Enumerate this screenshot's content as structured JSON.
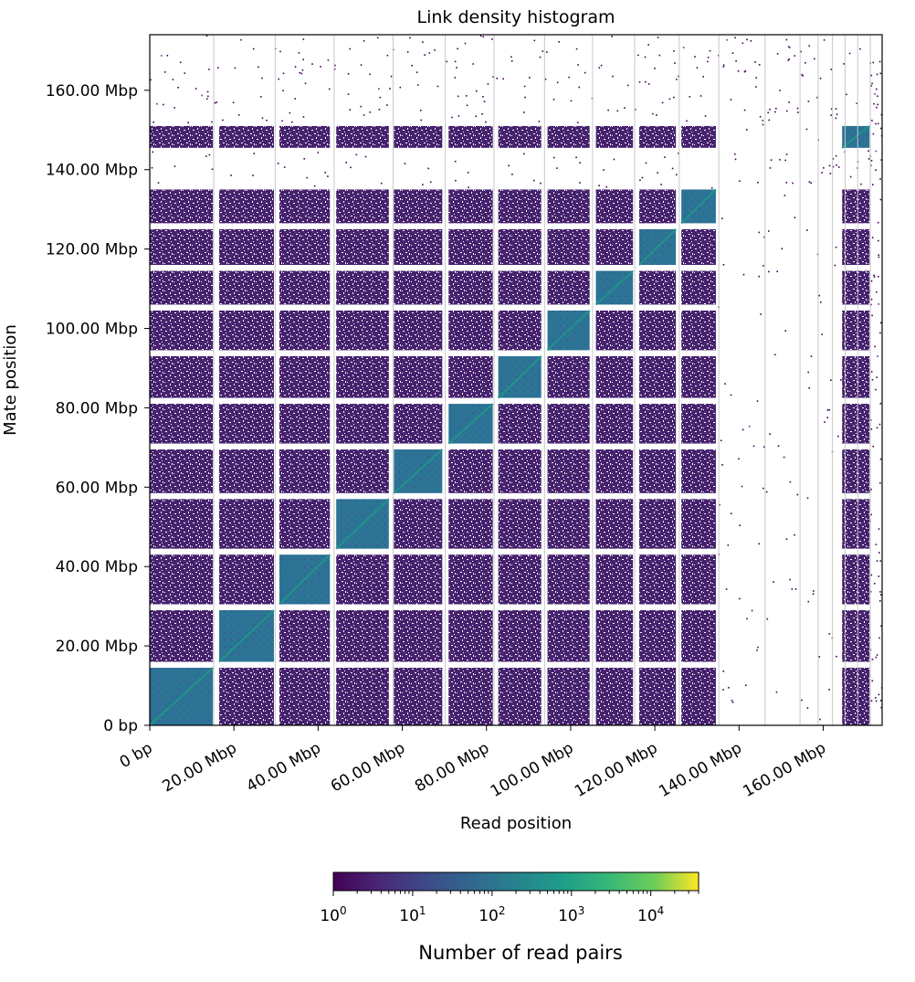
{
  "chart_data": {
    "type": "heatmap",
    "title": "Link density histogram",
    "xlabel": "Read position",
    "ylabel": "Mate position",
    "xlim_mbp": [
      0,
      174
    ],
    "ylim_mbp": [
      0,
      174
    ],
    "x_ticks": [
      {
        "value": 0,
        "label": "0 bp"
      },
      {
        "value": 20,
        "label": "20.00 Mbp"
      },
      {
        "value": 40,
        "label": "40.00 Mbp"
      },
      {
        "value": 60,
        "label": "60.00 Mbp"
      },
      {
        "value": 80,
        "label": "80.00 Mbp"
      },
      {
        "value": 100,
        "label": "100.00 Mbp"
      },
      {
        "value": 120,
        "label": "120.00 Mbp"
      },
      {
        "value": 140,
        "label": "140.00 Mbp"
      },
      {
        "value": 160,
        "label": "160.00 Mbp"
      }
    ],
    "y_ticks": [
      {
        "value": 0,
        "label": "0 bp"
      },
      {
        "value": 20,
        "label": "20.00 Mbp"
      },
      {
        "value": 40,
        "label": "40.00 Mbp"
      },
      {
        "value": 60,
        "label": "60.00 Mbp"
      },
      {
        "value": 80,
        "label": "80.00 Mbp"
      },
      {
        "value": 100,
        "label": "100.00 Mbp"
      },
      {
        "value": 120,
        "label": "120.00 Mbp"
      },
      {
        "value": 140,
        "label": "140.00 Mbp"
      },
      {
        "value": 160,
        "label": "160.00 Mbp"
      }
    ],
    "scaffolds_mbp": [
      [
        0,
        14.5
      ],
      [
        16,
        29
      ],
      [
        30.5,
        43
      ],
      [
        44.5,
        57
      ],
      [
        58.5,
        69.5
      ],
      [
        71,
        81
      ],
      [
        82.5,
        93
      ],
      [
        94.5,
        104.5
      ],
      [
        106,
        114.5
      ],
      [
        116,
        125
      ],
      [
        126.5,
        134.5
      ],
      [
        135.5,
        146
      ],
      [
        146.5,
        151
      ],
      [
        151.5,
        166
      ],
      [
        164.5,
        166
      ],
      [
        166,
        174
      ]
    ],
    "sparse_bands_mbp": [
      [
        135.5,
        146
      ],
      [
        151.5,
        166
      ]
    ],
    "scaffold_boundaries_mbp": [
      15.2,
      29.8,
      43.8,
      57.8,
      70.2,
      81.8,
      93.8,
      105.2,
      115.2,
      125.8,
      135.2,
      146.2,
      154.5,
      158.8,
      162.2,
      165.2,
      168.2,
      171.2
    ],
    "colorbar": {
      "label": "Number of read pairs",
      "scale": "log",
      "range": [
        1,
        40000
      ],
      "colormap": "viridis",
      "tick_labels": [
        {
          "value": 1,
          "base": "10",
          "exp": "0"
        },
        {
          "value": 10,
          "base": "10",
          "exp": "1"
        },
        {
          "value": 100,
          "base": "10",
          "exp": "2"
        },
        {
          "value": 1000,
          "base": "10",
          "exp": "3"
        },
        {
          "value": 10000,
          "base": "10",
          "exp": "4"
        }
      ]
    },
    "colors": {
      "low": "#440154",
      "offdiag": "#46226e",
      "diag_block": "#2c7395",
      "diagonal": "#21918c",
      "grid": "#c8c8c8"
    }
  }
}
